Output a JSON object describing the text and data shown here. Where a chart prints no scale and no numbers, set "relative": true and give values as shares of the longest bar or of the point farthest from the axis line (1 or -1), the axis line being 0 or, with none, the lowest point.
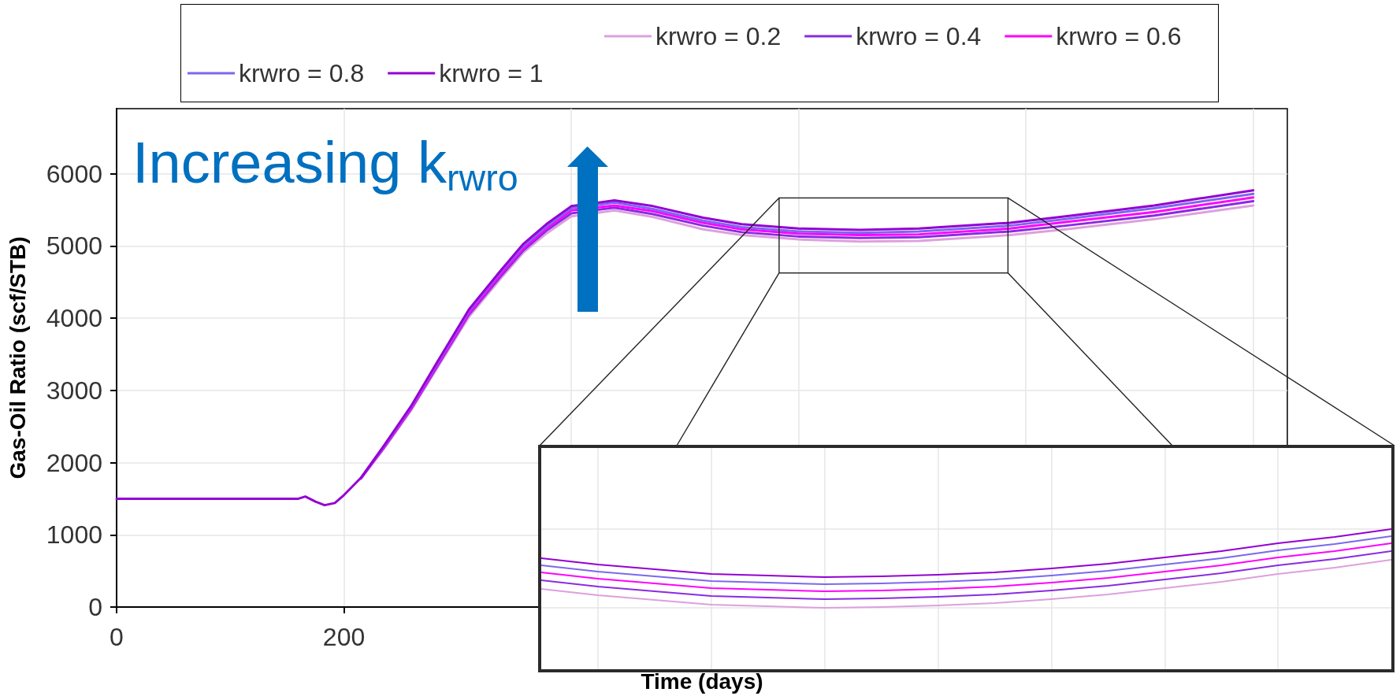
{
  "chart_data": [
    {
      "type": "line",
      "xlabel": "Time (days)",
      "ylabel": "Gas-Oil Ratio (scf/STB)",
      "annotations": [
        "Increasing k$_{rwro}$"
      ],
      "x": [
        0,
        160,
        166,
        175,
        183,
        192,
        200,
        215,
        235,
        259,
        282,
        310,
        338,
        358,
        378,
        400,
        438,
        472,
        516,
        550,
        600,
        654,
        706,
        786,
        835,
        913,
        1000
      ],
      "series": [
        {
          "name": "krwro = 0.2",
          "color": "#dda0dd",
          "values": [
            null,
            null,
            null,
            null,
            null,
            null,
            null,
            1780,
            2190,
            2720,
            3310,
            4020,
            4550,
            4910,
            5170,
            5410,
            5490,
            5400,
            5230,
            5150,
            5090,
            5060,
            5070,
            5150,
            5230,
            5370,
            5560
          ]
        },
        {
          "name": "krwro = 0.4",
          "color": "#8a2be2",
          "values": [
            null,
            null,
            null,
            null,
            null,
            null,
            null,
            1780,
            2200,
            2740,
            3330,
            4050,
            4580,
            4940,
            5210,
            5450,
            5530,
            5440,
            5280,
            5190,
            5130,
            5110,
            5120,
            5200,
            5280,
            5420,
            5620
          ]
        },
        {
          "name": "krwro = 0.6",
          "color": "#ff00ff",
          "values": [
            null,
            null,
            null,
            null,
            null,
            null,
            null,
            1780,
            2210,
            2750,
            3350,
            4070,
            4610,
            4970,
            5240,
            5490,
            5560,
            5480,
            5320,
            5230,
            5170,
            5150,
            5160,
            5240,
            5330,
            5470,
            5670
          ]
        },
        {
          "name": "krwro = 0.8",
          "color": "#7b68ee",
          "values": [
            null,
            null,
            null,
            null,
            null,
            null,
            null,
            1790,
            2220,
            2770,
            3370,
            4100,
            4640,
            5000,
            5270,
            5520,
            5600,
            5510,
            5350,
            5260,
            5200,
            5180,
            5200,
            5280,
            5370,
            5520,
            5720
          ]
        },
        {
          "name": "krwro = 1",
          "color": "#9400d3",
          "values": [
            1500,
            1500,
            1530,
            1460,
            1410,
            1440,
            1550,
            1790,
            2230,
            2780,
            3390,
            4120,
            4660,
            5030,
            5300,
            5550,
            5630,
            5550,
            5390,
            5300,
            5240,
            5220,
            5240,
            5320,
            5410,
            5560,
            5770
          ]
        }
      ],
      "xlim": [
        0,
        1030
      ],
      "ylim": [
        0,
        6900
      ],
      "xticks": [
        0,
        200,
        {
          "value": 400,
          "label": null
        },
        {
          "value": 600,
          "label": null
        },
        {
          "value": 800,
          "label": null
        },
        {
          "value": 1000,
          "label": null
        }
      ],
      "yticks": [
        0,
        1000,
        2000,
        3000,
        4000,
        5000,
        6000
      ],
      "grid": true,
      "legend": "top"
    },
    {
      "type": "line",
      "relative": true,
      "grid": true,
      "categories": [
        null,
        null,
        null,
        null,
        null,
        null,
        null,
        null,
        null,
        null,
        null,
        null,
        null,
        null,
        null,
        null
      ],
      "series": [
        {
          "color": "#dda0dd",
          "values": [
            0.24,
            0.16,
            0.1,
            0.04,
            0.02,
            0.0,
            0.01,
            0.03,
            0.06,
            0.11,
            0.17,
            0.25,
            0.33,
            0.43,
            0.51,
            0.61
          ]
        },
        {
          "color": "#8a2be2",
          "values": [
            0.35,
            0.27,
            0.21,
            0.15,
            0.13,
            0.11,
            0.12,
            0.14,
            0.17,
            0.22,
            0.28,
            0.36,
            0.44,
            0.54,
            0.62,
            0.72
          ]
        },
        {
          "color": "#ff00ff",
          "values": [
            0.45,
            0.37,
            0.31,
            0.25,
            0.23,
            0.21,
            0.22,
            0.24,
            0.27,
            0.32,
            0.38,
            0.46,
            0.54,
            0.64,
            0.72,
            0.82
          ]
        },
        {
          "color": "#7b68ee",
          "values": [
            0.54,
            0.46,
            0.4,
            0.34,
            0.32,
            0.3,
            0.31,
            0.33,
            0.36,
            0.41,
            0.47,
            0.55,
            0.63,
            0.73,
            0.81,
            0.91
          ]
        },
        {
          "color": "#9400d3",
          "values": [
            0.63,
            0.55,
            0.49,
            0.43,
            0.41,
            0.39,
            0.4,
            0.42,
            0.45,
            0.5,
            0.56,
            0.64,
            0.72,
            0.82,
            0.9,
            1.0
          ]
        }
      ]
    }
  ]
}
